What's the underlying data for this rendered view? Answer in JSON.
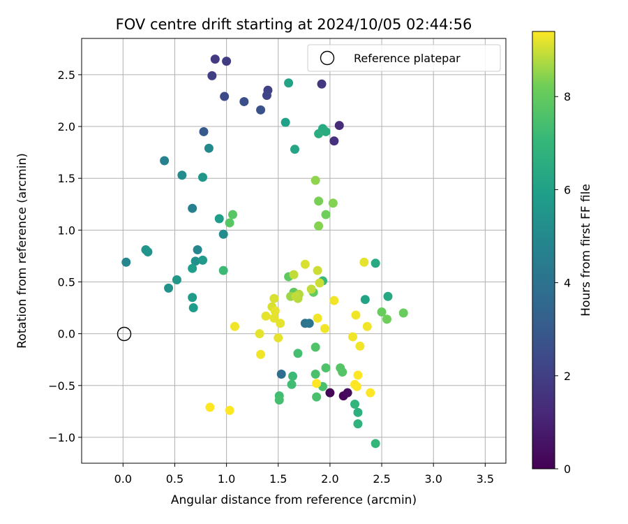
{
  "chart_data": {
    "type": "scatter",
    "title": "FOV centre drift starting at 2024/10/05 02:44:56",
    "xlabel": "Angular distance from reference (arcmin)",
    "ylabel": "Rotation from reference (arcmin)",
    "xlim": [
      -0.4,
      3.7
    ],
    "ylim": [
      -1.25,
      2.85
    ],
    "xticks": [
      "0.0",
      "0.5",
      "1.0",
      "1.5",
      "2.0",
      "2.5",
      "3.0",
      "3.5"
    ],
    "yticks": [
      "−1.0",
      "−0.5",
      "0.0",
      "0.5",
      "1.0",
      "1.5",
      "2.0",
      "2.5"
    ],
    "grid": true,
    "legend": {
      "label": "Reference platepar",
      "placement": "top-right",
      "marker": "open-circle"
    },
    "reference_point": {
      "x": 0.0,
      "y": 0.0
    },
    "colorbar": {
      "label": "Hours from first FF file",
      "colormap": "viridis",
      "range": [
        0,
        9.4
      ],
      "ticks": [
        "0",
        "2",
        "4",
        "6",
        "8"
      ]
    },
    "points": [
      {
        "x": 2.0,
        "y": -0.57,
        "c": 0.1
      },
      {
        "x": 2.13,
        "y": -0.6,
        "c": 0.2
      },
      {
        "x": 2.17,
        "y": -0.57,
        "c": 0.3
      },
      {
        "x": 2.09,
        "y": 2.01,
        "c": 1.3
      },
      {
        "x": 2.04,
        "y": 1.86,
        "c": 1.5
      },
      {
        "x": 1.92,
        "y": 2.41,
        "c": 1.7
      },
      {
        "x": 0.89,
        "y": 2.65,
        "c": 1.8
      },
      {
        "x": 1.0,
        "y": 2.63,
        "c": 1.9
      },
      {
        "x": 0.86,
        "y": 2.49,
        "c": 2.0
      },
      {
        "x": 1.4,
        "y": 2.35,
        "c": 2.1
      },
      {
        "x": 1.39,
        "y": 2.3,
        "c": 2.2
      },
      {
        "x": 0.98,
        "y": 2.29,
        "c": 2.4
      },
      {
        "x": 1.17,
        "y": 2.24,
        "c": 2.6
      },
      {
        "x": 1.33,
        "y": 2.16,
        "c": 2.7
      },
      {
        "x": 0.78,
        "y": 1.95,
        "c": 3.0
      },
      {
        "x": 1.53,
        "y": -0.39,
        "c": 3.8
      },
      {
        "x": 1.76,
        "y": 0.1,
        "c": 4.0
      },
      {
        "x": 1.8,
        "y": 0.1,
        "c": 4.1
      },
      {
        "x": 0.67,
        "y": 1.21,
        "c": 4.6
      },
      {
        "x": 0.4,
        "y": 1.67,
        "c": 4.7
      },
      {
        "x": 0.03,
        "y": 0.69,
        "c": 4.9
      },
      {
        "x": 0.72,
        "y": 0.81,
        "c": 4.9
      },
      {
        "x": 0.83,
        "y": 1.79,
        "c": 5.0
      },
      {
        "x": 0.57,
        "y": 1.53,
        "c": 5.1
      },
      {
        "x": 0.97,
        "y": 0.96,
        "c": 5.1
      },
      {
        "x": 0.7,
        "y": 0.7,
        "c": 5.3
      },
      {
        "x": 0.44,
        "y": 0.44,
        "c": 5.4
      },
      {
        "x": 0.22,
        "y": 0.81,
        "c": 5.5
      },
      {
        "x": 0.24,
        "y": 0.79,
        "c": 5.5
      },
      {
        "x": 0.77,
        "y": 1.51,
        "c": 5.6
      },
      {
        "x": 0.52,
        "y": 0.52,
        "c": 5.6
      },
      {
        "x": 0.77,
        "y": 0.71,
        "c": 5.7
      },
      {
        "x": 0.67,
        "y": 0.35,
        "c": 5.8
      },
      {
        "x": 0.68,
        "y": 0.25,
        "c": 5.8
      },
      {
        "x": 0.67,
        "y": 0.63,
        "c": 5.9
      },
      {
        "x": 0.93,
        "y": 1.11,
        "c": 5.9
      },
      {
        "x": 1.57,
        "y": 2.04,
        "c": 6.0
      },
      {
        "x": 2.34,
        "y": 0.33,
        "c": 6.1
      },
      {
        "x": 1.6,
        "y": 2.42,
        "c": 6.1
      },
      {
        "x": 1.66,
        "y": 1.78,
        "c": 6.2
      },
      {
        "x": 2.56,
        "y": 0.36,
        "c": 6.3
      },
      {
        "x": 2.44,
        "y": 0.68,
        "c": 6.4
      },
      {
        "x": 1.93,
        "y": 1.98,
        "c": 6.4
      },
      {
        "x": 1.96,
        "y": 1.95,
        "c": 6.5
      },
      {
        "x": 1.89,
        "y": 1.93,
        "c": 6.6
      },
      {
        "x": 2.27,
        "y": -0.76,
        "c": 6.7
      },
      {
        "x": 2.27,
        "y": -0.87,
        "c": 6.8
      },
      {
        "x": 2.24,
        "y": -0.68,
        "c": 6.9
      },
      {
        "x": 2.44,
        "y": -1.06,
        "c": 7.0
      },
      {
        "x": 1.93,
        "y": 0.51,
        "c": 7.1
      },
      {
        "x": 1.64,
        "y": -0.41,
        "c": 7.2
      },
      {
        "x": 1.63,
        "y": -0.49,
        "c": 7.3
      },
      {
        "x": 1.51,
        "y": -0.6,
        "c": 7.3
      },
      {
        "x": 1.51,
        "y": -0.64,
        "c": 7.4
      },
      {
        "x": 1.69,
        "y": -0.19,
        "c": 7.4
      },
      {
        "x": 1.93,
        "y": -0.51,
        "c": 7.5
      },
      {
        "x": 1.86,
        "y": -0.39,
        "c": 7.5
      },
      {
        "x": 1.87,
        "y": -0.61,
        "c": 7.5
      },
      {
        "x": 1.86,
        "y": -0.13,
        "c": 7.6
      },
      {
        "x": 1.96,
        "y": -0.33,
        "c": 7.6
      },
      {
        "x": 2.12,
        "y": -0.37,
        "c": 7.7
      },
      {
        "x": 2.1,
        "y": -0.33,
        "c": 7.7
      },
      {
        "x": 0.97,
        "y": 0.61,
        "c": 7.2
      },
      {
        "x": 1.06,
        "y": 1.15,
        "c": 7.8
      },
      {
        "x": 1.03,
        "y": 1.07,
        "c": 7.8
      },
      {
        "x": 1.65,
        "y": 0.4,
        "c": 7.9
      },
      {
        "x": 1.6,
        "y": 0.55,
        "c": 7.9
      },
      {
        "x": 1.84,
        "y": 0.4,
        "c": 8.0
      },
      {
        "x": 2.71,
        "y": 0.2,
        "c": 8.1
      },
      {
        "x": 2.5,
        "y": 0.21,
        "c": 8.1
      },
      {
        "x": 2.55,
        "y": 0.14,
        "c": 8.2
      },
      {
        "x": 1.96,
        "y": 1.15,
        "c": 8.2
      },
      {
        "x": 1.89,
        "y": 1.28,
        "c": 8.3
      },
      {
        "x": 1.89,
        "y": 1.04,
        "c": 8.4
      },
      {
        "x": 2.03,
        "y": 1.26,
        "c": 8.4
      },
      {
        "x": 1.86,
        "y": 1.48,
        "c": 8.5
      },
      {
        "x": 1.62,
        "y": 0.36,
        "c": 8.6
      },
      {
        "x": 1.68,
        "y": 0.36,
        "c": 8.7
      },
      {
        "x": 1.7,
        "y": 0.38,
        "c": 8.8
      },
      {
        "x": 1.69,
        "y": 0.34,
        "c": 8.8
      },
      {
        "x": 1.67,
        "y": 0.36,
        "c": 8.9
      },
      {
        "x": 1.65,
        "y": 0.57,
        "c": 8.9
      },
      {
        "x": 1.82,
        "y": 0.43,
        "c": 8.9
      },
      {
        "x": 1.9,
        "y": 0.49,
        "c": 9.0
      },
      {
        "x": 1.88,
        "y": 0.61,
        "c": 9.0
      },
      {
        "x": 1.76,
        "y": 0.67,
        "c": 9.1
      },
      {
        "x": 1.46,
        "y": 0.34,
        "c": 9.1
      },
      {
        "x": 1.44,
        "y": 0.26,
        "c": 9.1
      },
      {
        "x": 1.38,
        "y": 0.17,
        "c": 9.2
      },
      {
        "x": 1.46,
        "y": 0.15,
        "c": 9.2
      },
      {
        "x": 1.47,
        "y": 0.22,
        "c": 9.2
      },
      {
        "x": 1.52,
        "y": 0.1,
        "c": 9.2
      },
      {
        "x": 1.5,
        "y": -0.04,
        "c": 9.2
      },
      {
        "x": 1.32,
        "y": 0.0,
        "c": 9.2
      },
      {
        "x": 1.33,
        "y": -0.2,
        "c": 9.3
      },
      {
        "x": 1.08,
        "y": 0.07,
        "c": 9.3
      },
      {
        "x": 1.88,
        "y": 0.15,
        "c": 9.3
      },
      {
        "x": 1.95,
        "y": 0.05,
        "c": 9.3
      },
      {
        "x": 2.04,
        "y": 0.32,
        "c": 9.3
      },
      {
        "x": 2.25,
        "y": 0.18,
        "c": 9.3
      },
      {
        "x": 2.33,
        "y": 0.69,
        "c": 9.2
      },
      {
        "x": 2.36,
        "y": 0.07,
        "c": 9.3
      },
      {
        "x": 2.22,
        "y": -0.03,
        "c": 9.3
      },
      {
        "x": 2.29,
        "y": -0.12,
        "c": 9.3
      },
      {
        "x": 2.24,
        "y": -0.49,
        "c": 9.4
      },
      {
        "x": 2.26,
        "y": -0.51,
        "c": 9.4
      },
      {
        "x": 2.27,
        "y": -0.4,
        "c": 9.4
      },
      {
        "x": 2.39,
        "y": -0.57,
        "c": 9.4
      },
      {
        "x": 1.87,
        "y": -0.48,
        "c": 9.4
      },
      {
        "x": 0.84,
        "y": -0.71,
        "c": 9.4
      },
      {
        "x": 1.03,
        "y": -0.74,
        "c": 9.4
      }
    ]
  }
}
